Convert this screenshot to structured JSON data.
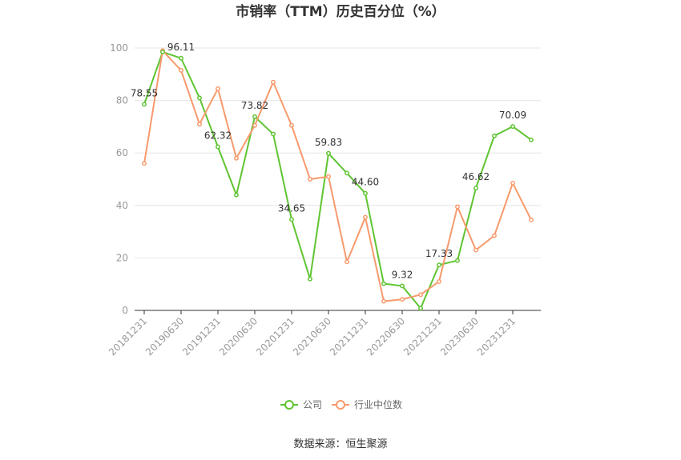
{
  "chart_data": {
    "type": "line",
    "title": "市销率（TTM）历史百分位（%）",
    "xlabel": "",
    "ylabel": "",
    "ylim": [
      0,
      100
    ],
    "yticks": [
      0,
      20,
      40,
      60,
      80,
      100
    ],
    "x": [
      "20181231",
      "20190331",
      "20190630",
      "20190930",
      "20191231",
      "20200331",
      "20200630",
      "20200930",
      "20201231",
      "20210331",
      "20210630",
      "20210930",
      "20211231",
      "20220331",
      "20220630",
      "20220930",
      "20221231",
      "20230331",
      "20230630",
      "20230930",
      "20231231",
      "20240331"
    ],
    "x_tick_labels": [
      "20181231",
      "20190630",
      "20191231",
      "20200630",
      "20201231",
      "20210630",
      "20211231",
      "20220630",
      "20221231",
      "20230630",
      "20231231"
    ],
    "series": [
      {
        "name": "公司",
        "color": "#5fc432",
        "values": [
          78.55,
          98.5,
          96.11,
          81.0,
          62.32,
          44.0,
          73.82,
          67.2,
          34.65,
          12.0,
          59.83,
          52.3,
          44.6,
          10.2,
          9.32,
          0.8,
          17.33,
          19.0,
          46.62,
          66.5,
          70.09,
          65.0
        ],
        "labels": [
          "78.55",
          "",
          "96.11",
          "",
          "62.32",
          "",
          "73.82",
          "",
          "34.65",
          "",
          "59.83",
          "",
          "44.60",
          "",
          "9.32",
          "",
          "17.33",
          "",
          "46.62",
          "",
          "70.09",
          ""
        ]
      },
      {
        "name": "行业中位数",
        "color": "#f79a6d",
        "values": [
          56.0,
          99.0,
          91.5,
          71.0,
          84.5,
          58.0,
          70.5,
          87.0,
          70.5,
          50.0,
          51.0,
          18.5,
          35.5,
          3.5,
          4.2,
          6.0,
          11.0,
          39.5,
          23.0,
          28.5,
          48.5,
          34.5
        ]
      }
    ],
    "legend": "bottom-center",
    "grid": true
  },
  "source": "数据来源：恒生聚源"
}
